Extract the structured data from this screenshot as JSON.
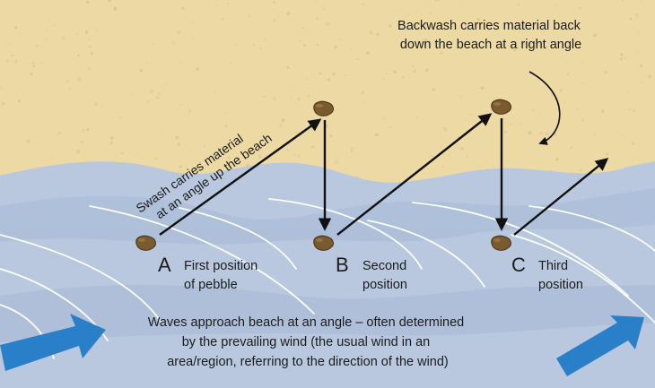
{
  "diagram": {
    "colors": {
      "sand": "#ecd9a4",
      "sand_speckle": "#d8c089",
      "sea": "#b9c8df",
      "sea_dark": "#a8b9d4",
      "wave_line": "#ffffff",
      "arrow": "#111111",
      "wind_arrow": "#2a7fc9",
      "pebble": "#7a5a2f"
    },
    "positions": [
      {
        "letter": "A",
        "line1": "First position",
        "line2": "of pebble"
      },
      {
        "letter": "B",
        "line1": "Second",
        "line2": "position"
      },
      {
        "letter": "C",
        "line1": "Third",
        "line2": "position"
      }
    ],
    "swash": {
      "line1": "Swash carries material",
      "line2": "at an angle up the beach"
    },
    "backwash": {
      "line1": "Backwash carries material back",
      "line2": "down the beach at a right angle"
    },
    "waves": {
      "line1": "Waves approach beach at an angle – often determined",
      "line2": "by the prevailing wind (the usual wind in an",
      "line3": "area/region, referring to the direction of the wind)"
    },
    "icons": [
      "pebble-icon",
      "wind-arrow-icon"
    ]
  }
}
